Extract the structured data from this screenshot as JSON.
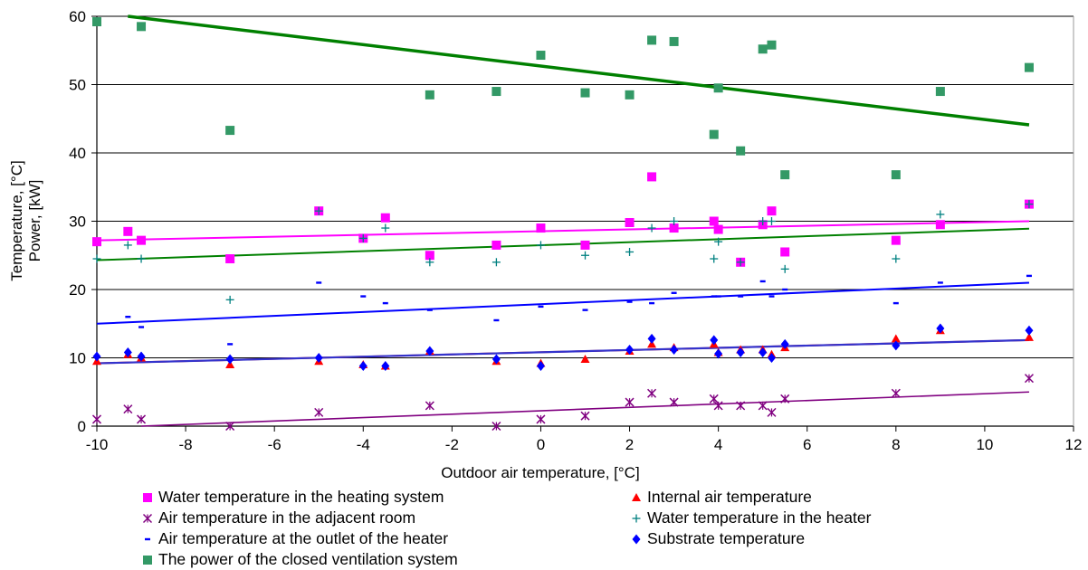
{
  "chart_data": {
    "type": "scatter",
    "xlabel": "Outdoor air temperature, [°C]",
    "ylabel_lines": [
      "Temperature, [°C]",
      "Power, [kW]"
    ],
    "xlim": [
      -10,
      12
    ],
    "ylim": [
      0,
      60
    ],
    "x_ticks": [
      -10,
      -8,
      -6,
      -4,
      -2,
      0,
      2,
      4,
      6,
      8,
      10,
      12
    ],
    "y_ticks": [
      0,
      10,
      20,
      30,
      40,
      50,
      60
    ],
    "grid": "horizontal",
    "legend_position": "bottom",
    "series": [
      {
        "name": "Water temperature in the heating system",
        "marker": "square",
        "color": "#ff00ff",
        "points": [
          [
            -10,
            27
          ],
          [
            -9.3,
            28.5
          ],
          [
            -9,
            27.2
          ],
          [
            -7,
            24.5
          ],
          [
            -5,
            31.5
          ],
          [
            -4,
            27.5
          ],
          [
            -3.5,
            30.5
          ],
          [
            -2.5,
            25
          ],
          [
            -1,
            26.5
          ],
          [
            0,
            29
          ],
          [
            1,
            26.5
          ],
          [
            2,
            29.8
          ],
          [
            2.5,
            36.5
          ],
          [
            3,
            29
          ],
          [
            3.9,
            30
          ],
          [
            4,
            28.8
          ],
          [
            4.5,
            24
          ],
          [
            5,
            29.5
          ],
          [
            5.2,
            31.5
          ],
          [
            5.5,
            25.5
          ],
          [
            8,
            27.2
          ],
          [
            9,
            29.5
          ],
          [
            11,
            32.5
          ]
        ],
        "trend": [
          [
            -10,
            27.2
          ],
          [
            11,
            30
          ]
        ]
      },
      {
        "name": "Internal air temperature",
        "marker": "triangle",
        "color": "#ff0000",
        "points": [
          [
            -10,
            9.5
          ],
          [
            -9.3,
            10.5
          ],
          [
            -9,
            10
          ],
          [
            -7,
            9
          ],
          [
            -5,
            9.5
          ],
          [
            -4,
            9
          ],
          [
            -3.5,
            8.8
          ],
          [
            -2.5,
            11
          ],
          [
            -1,
            9.5
          ],
          [
            0,
            9.2
          ],
          [
            1,
            9.8
          ],
          [
            2,
            11
          ],
          [
            2.5,
            12
          ],
          [
            3,
            11.5
          ],
          [
            3.9,
            12
          ],
          [
            4,
            10.8
          ],
          [
            4.5,
            11.2
          ],
          [
            5,
            11.2
          ],
          [
            5.2,
            10.5
          ],
          [
            5.5,
            11.5
          ],
          [
            8,
            12.8
          ],
          [
            9,
            14
          ],
          [
            11,
            13
          ]
        ],
        "trend": [
          [
            -10,
            9.2
          ],
          [
            11,
            12.6
          ]
        ]
      },
      {
        "name": "Air temperature in the adjacent room",
        "marker": "star",
        "color": "#800080",
        "points": [
          [
            -10,
            1
          ],
          [
            -9.3,
            2.5
          ],
          [
            -9,
            1
          ],
          [
            -7,
            0
          ],
          [
            -5,
            2
          ],
          [
            -2.5,
            3
          ],
          [
            -1,
            0
          ],
          [
            0,
            1
          ],
          [
            1,
            1.5
          ],
          [
            2,
            3.5
          ],
          [
            2.5,
            4.8
          ],
          [
            3,
            3.5
          ],
          [
            3.9,
            4
          ],
          [
            4,
            3
          ],
          [
            4.5,
            3
          ],
          [
            5,
            3
          ],
          [
            5.2,
            2
          ],
          [
            5.5,
            4
          ],
          [
            8,
            4.8
          ],
          [
            11,
            7
          ]
        ],
        "trend": [
          [
            -9,
            0
          ],
          [
            11,
            5
          ]
        ]
      },
      {
        "name": "Water temperature in the heater",
        "marker": "plus",
        "color": "#008080",
        "points": [
          [
            -10,
            24.5
          ],
          [
            -9.3,
            26.5
          ],
          [
            -9,
            24.5
          ],
          [
            -7,
            18.5
          ],
          [
            -5,
            31.5
          ],
          [
            -4,
            27.5
          ],
          [
            -3.5,
            29
          ],
          [
            -2.5,
            24
          ],
          [
            -1,
            24
          ],
          [
            0,
            26.5
          ],
          [
            1,
            25
          ],
          [
            2,
            25.5
          ],
          [
            2.5,
            29
          ],
          [
            3,
            30
          ],
          [
            3.9,
            24.5
          ],
          [
            4,
            27
          ],
          [
            4.5,
            24
          ],
          [
            5,
            30
          ],
          [
            5.2,
            30
          ],
          [
            5.5,
            23
          ],
          [
            8,
            24.5
          ],
          [
            9,
            31
          ],
          [
            11,
            32.5
          ]
        ],
        "trend": [
          [
            -10,
            24.3
          ],
          [
            11,
            28.9
          ]
        ]
      },
      {
        "name": "Air temperature at the outlet of the heater",
        "marker": "dash",
        "color": "#0000ff",
        "points": [
          [
            -9.3,
            16
          ],
          [
            -9,
            14.5
          ],
          [
            -7,
            12
          ],
          [
            -5,
            21
          ],
          [
            -4,
            19
          ],
          [
            -3.5,
            18
          ],
          [
            -2.5,
            17
          ],
          [
            -1,
            15.5
          ],
          [
            0,
            17.5
          ],
          [
            1,
            17
          ],
          [
            2,
            18.2
          ],
          [
            2.5,
            18
          ],
          [
            3,
            19.5
          ],
          [
            3.9,
            19
          ],
          [
            4,
            19
          ],
          [
            4.5,
            19
          ],
          [
            5,
            21.2
          ],
          [
            5.2,
            19
          ],
          [
            5.5,
            20
          ],
          [
            8,
            18
          ],
          [
            9,
            21
          ],
          [
            11,
            22
          ]
        ],
        "trend": [
          [
            -10,
            15
          ],
          [
            11,
            21
          ]
        ]
      },
      {
        "name": "Substrate temperature",
        "marker": "diamond",
        "color": "#0000ff",
        "points": [
          [
            -10,
            10.2
          ],
          [
            -9.3,
            10.8
          ],
          [
            -9,
            10.2
          ],
          [
            -7,
            9.8
          ],
          [
            -5,
            10
          ],
          [
            -4,
            8.8
          ],
          [
            -3.5,
            8.8
          ],
          [
            -2.5,
            11
          ],
          [
            -1,
            9.8
          ],
          [
            0,
            8.8
          ],
          [
            2,
            11.2
          ],
          [
            2.5,
            12.8
          ],
          [
            3,
            11.2
          ],
          [
            3.9,
            12.6
          ],
          [
            4,
            10.6
          ],
          [
            4.5,
            10.8
          ],
          [
            5,
            10.8
          ],
          [
            5.2,
            10
          ],
          [
            5.5,
            12
          ],
          [
            8,
            11.8
          ],
          [
            9,
            14.3
          ],
          [
            11,
            14
          ]
        ],
        "trend": [
          [
            -10,
            9.2
          ],
          [
            11,
            12.6
          ]
        ]
      },
      {
        "name": "The power of the closed ventilation system",
        "marker": "square",
        "color": "#339966",
        "points": [
          [
            -10,
            59.2
          ],
          [
            -9,
            58.5
          ],
          [
            -7,
            43.3
          ],
          [
            -2.5,
            48.5
          ],
          [
            -1,
            49
          ],
          [
            0,
            54.3
          ],
          [
            1,
            48.8
          ],
          [
            2,
            48.5
          ],
          [
            2.5,
            56.5
          ],
          [
            3,
            56.3
          ],
          [
            3.9,
            42.7
          ],
          [
            4,
            49.5
          ],
          [
            4.5,
            40.3
          ],
          [
            5,
            55.2
          ],
          [
            5.2,
            55.8
          ],
          [
            5.5,
            36.8
          ],
          [
            8,
            36.8
          ],
          [
            9,
            49
          ],
          [
            11,
            52.5
          ]
        ],
        "trend": [
          [
            -9.3,
            60
          ],
          [
            11,
            44.1
          ]
        ]
      }
    ]
  }
}
